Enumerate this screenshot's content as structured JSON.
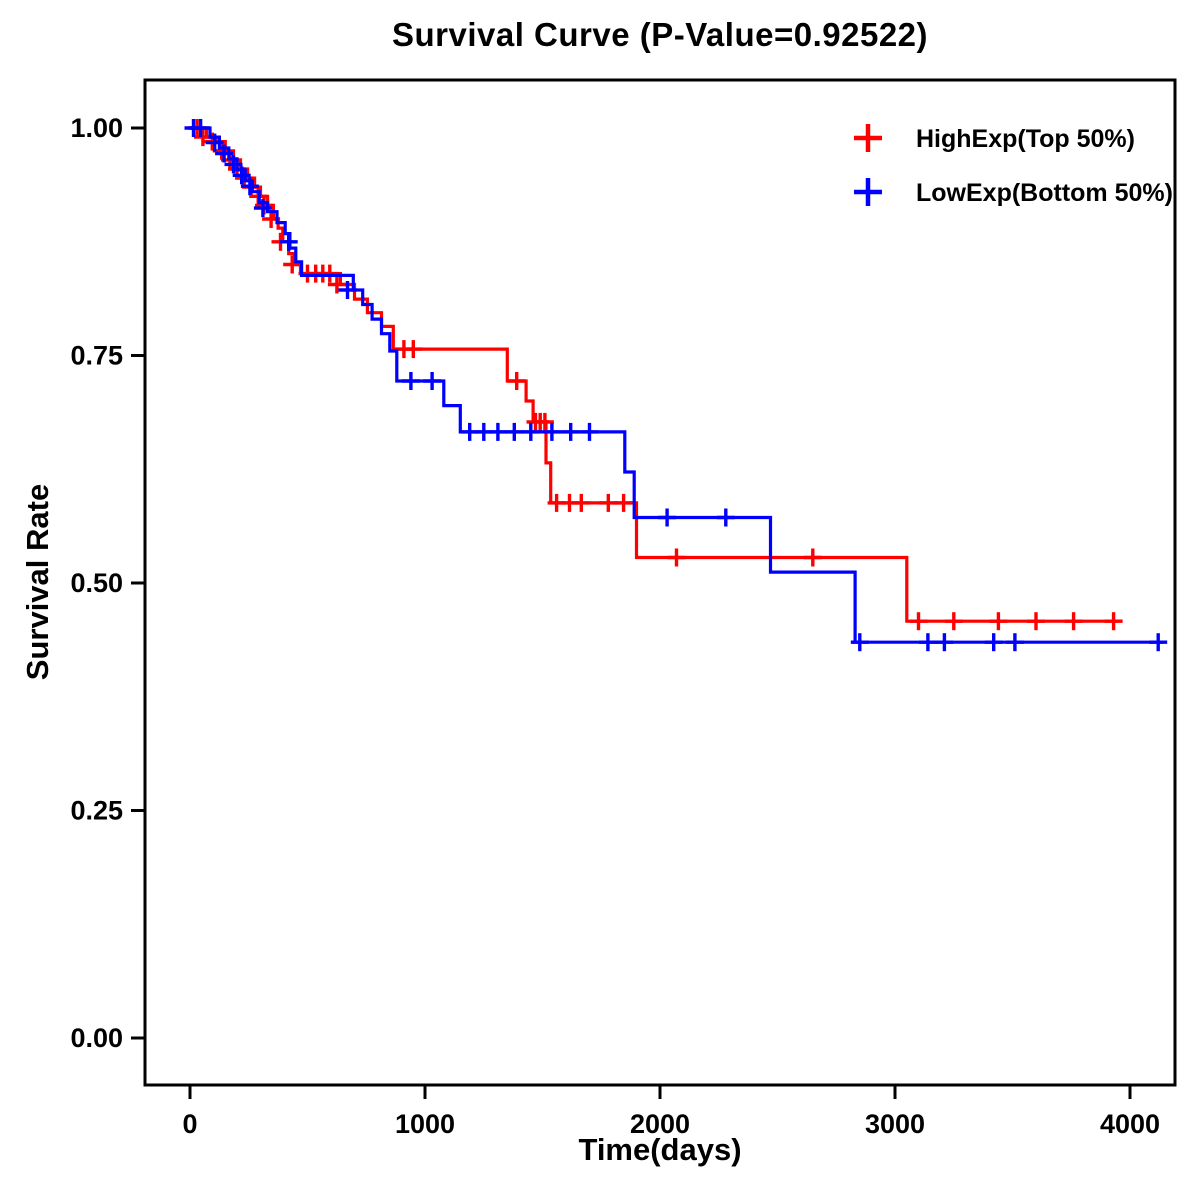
{
  "chart_data": {
    "type": "line",
    "subtype": "kaplan-meier-step",
    "title": "Survival Curve (P-Value=0.92522)",
    "xlabel": "Time(days)",
    "ylabel": "Survival Rate",
    "xlim": [
      -190,
      4190
    ],
    "ylim": [
      -0.052,
      1.053
    ],
    "xticks": [
      0,
      1000,
      2000,
      3000,
      4000
    ],
    "xtick_labels": [
      "0",
      "1000",
      "2000",
      "3000",
      "4000"
    ],
    "yticks": [
      0,
      0.25,
      0.5,
      0.75,
      1.0
    ],
    "ytick_labels": [
      "0.00",
      "0.25",
      "0.50",
      "0.75",
      "1.00"
    ],
    "grid": false,
    "legend_position": "top-right-inside",
    "series": [
      {
        "name": "HighExp(Top 50%)",
        "color": "#FF0000",
        "end_time": 3950,
        "drops": [
          [
            0,
            1.0
          ],
          [
            70,
            0.99
          ],
          [
            110,
            0.985
          ],
          [
            150,
            0.975
          ],
          [
            185,
            0.965
          ],
          [
            215,
            0.955
          ],
          [
            245,
            0.945
          ],
          [
            275,
            0.935
          ],
          [
            300,
            0.925
          ],
          [
            330,
            0.915
          ],
          [
            355,
            0.9
          ],
          [
            375,
            0.89
          ],
          [
            395,
            0.875
          ],
          [
            420,
            0.862
          ],
          [
            445,
            0.85
          ],
          [
            470,
            0.84
          ],
          [
            640,
            0.828
          ],
          [
            700,
            0.812
          ],
          [
            755,
            0.797
          ],
          [
            815,
            0.782
          ],
          [
            865,
            0.757
          ],
          [
            1350,
            0.722
          ],
          [
            1430,
            0.7
          ],
          [
            1460,
            0.677
          ],
          [
            1515,
            0.632
          ],
          [
            1535,
            0.588
          ],
          [
            1900,
            0.528
          ],
          [
            3050,
            0.458
          ]
        ],
        "censors": [
          [
            30,
            1.0
          ],
          [
            55,
            0.99
          ],
          [
            95,
            0.985
          ],
          [
            135,
            0.975
          ],
          [
            170,
            0.965
          ],
          [
            200,
            0.955
          ],
          [
            230,
            0.945
          ],
          [
            260,
            0.935
          ],
          [
            290,
            0.925
          ],
          [
            315,
            0.915
          ],
          [
            345,
            0.9
          ],
          [
            385,
            0.875
          ],
          [
            435,
            0.85
          ],
          [
            500,
            0.84
          ],
          [
            535,
            0.84
          ],
          [
            565,
            0.84
          ],
          [
            595,
            0.84
          ],
          [
            625,
            0.828
          ],
          [
            910,
            0.757
          ],
          [
            950,
            0.757
          ],
          [
            1390,
            0.722
          ],
          [
            1470,
            0.677
          ],
          [
            1490,
            0.677
          ],
          [
            1510,
            0.677
          ],
          [
            1560,
            0.588
          ],
          [
            1615,
            0.588
          ],
          [
            1665,
            0.588
          ],
          [
            1780,
            0.588
          ],
          [
            1845,
            0.588
          ],
          [
            2070,
            0.528
          ],
          [
            2650,
            0.528
          ],
          [
            3100,
            0.458
          ],
          [
            3250,
            0.458
          ],
          [
            3440,
            0.458
          ],
          [
            3600,
            0.458
          ],
          [
            3760,
            0.458
          ],
          [
            3930,
            0.458
          ]
        ]
      },
      {
        "name": "LowExp(Bottom 50%)",
        "color": "#0000FF",
        "end_time": 4140,
        "drops": [
          [
            0,
            1.0
          ],
          [
            85,
            0.99
          ],
          [
            125,
            0.978
          ],
          [
            165,
            0.966
          ],
          [
            200,
            0.954
          ],
          [
            235,
            0.942
          ],
          [
            265,
            0.93
          ],
          [
            295,
            0.918
          ],
          [
            330,
            0.908
          ],
          [
            370,
            0.896
          ],
          [
            405,
            0.884
          ],
          [
            425,
            0.868
          ],
          [
            450,
            0.853
          ],
          [
            475,
            0.838
          ],
          [
            695,
            0.822
          ],
          [
            735,
            0.806
          ],
          [
            775,
            0.79
          ],
          [
            815,
            0.774
          ],
          [
            850,
            0.755
          ],
          [
            880,
            0.722
          ],
          [
            1080,
            0.695
          ],
          [
            1150,
            0.666
          ],
          [
            1850,
            0.622
          ],
          [
            1890,
            0.572
          ],
          [
            2470,
            0.512
          ],
          [
            2830,
            0.435
          ]
        ],
        "censors": [
          [
            15,
            1.0
          ],
          [
            45,
            1.0
          ],
          [
            105,
            0.984
          ],
          [
            145,
            0.972
          ],
          [
            185,
            0.96
          ],
          [
            220,
            0.948
          ],
          [
            255,
            0.936
          ],
          [
            310,
            0.912
          ],
          [
            420,
            0.875
          ],
          [
            670,
            0.822
          ],
          [
            940,
            0.722
          ],
          [
            1030,
            0.722
          ],
          [
            1190,
            0.666
          ],
          [
            1250,
            0.666
          ],
          [
            1310,
            0.666
          ],
          [
            1380,
            0.666
          ],
          [
            1450,
            0.666
          ],
          [
            1540,
            0.666
          ],
          [
            1620,
            0.666
          ],
          [
            1700,
            0.666
          ],
          [
            2030,
            0.572
          ],
          [
            2280,
            0.572
          ],
          [
            2850,
            0.435
          ],
          [
            3140,
            0.435
          ],
          [
            3210,
            0.435
          ],
          [
            3420,
            0.435
          ],
          [
            3510,
            0.435
          ],
          [
            4120,
            0.435
          ]
        ]
      }
    ]
  }
}
